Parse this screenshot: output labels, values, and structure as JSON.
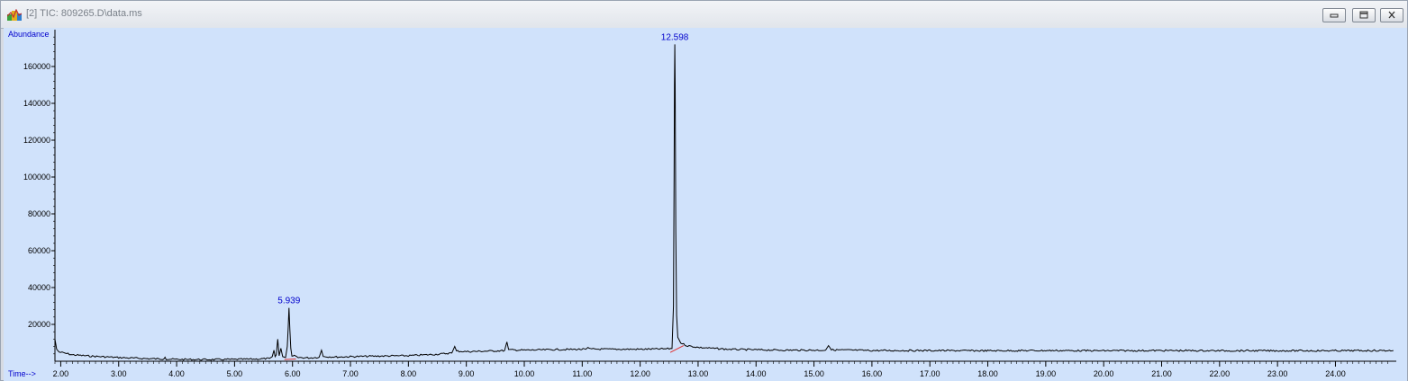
{
  "window": {
    "title": "[2] TIC: 809265.D\\data.ms",
    "icon": "chromatogram-app-icon",
    "controls": [
      "minimize-icon",
      "restore-icon",
      "close-icon"
    ]
  },
  "colors": {
    "plot_bg": "#d0e2fb",
    "trace": "#000000",
    "label": "#0000cc",
    "baseline": "#e03030"
  },
  "chart_data": {
    "type": "line",
    "title": "",
    "xlabel": "Time-->",
    "ylabel": "Abundance",
    "xlim": [
      1.9,
      25.05
    ],
    "ylim": [
      0,
      180000
    ],
    "x_ticks": [
      "2.00",
      "3.00",
      "4.00",
      "5.00",
      "6.00",
      "7.00",
      "8.00",
      "9.00",
      "10.00",
      "11.00",
      "12.00",
      "13.00",
      "14.00",
      "15.00",
      "16.00",
      "17.00",
      "18.00",
      "19.00",
      "20.00",
      "21.00",
      "22.00",
      "23.00",
      "24.00"
    ],
    "y_ticks": [
      "20000",
      "40000",
      "60000",
      "80000",
      "100000",
      "120000",
      "140000",
      "160000"
    ],
    "series": [
      {
        "points": [
          [
            1.9,
            12000
          ],
          [
            1.93,
            6500
          ],
          [
            1.97,
            5000
          ],
          [
            2.05,
            4500
          ],
          [
            2.2,
            3500
          ],
          [
            2.5,
            2800
          ],
          [
            3.0,
            2000
          ],
          [
            3.5,
            1400
          ],
          [
            3.78,
            1200
          ],
          [
            3.8,
            2200
          ],
          [
            3.82,
            1200
          ],
          [
            4.0,
            1000
          ],
          [
            4.5,
            900
          ],
          [
            5.0,
            1000
          ],
          [
            5.4,
            1200
          ],
          [
            5.6,
            1500
          ],
          [
            5.65,
            2500
          ],
          [
            5.68,
            6000
          ],
          [
            5.7,
            2500
          ],
          [
            5.72,
            3500
          ],
          [
            5.745,
            12000
          ],
          [
            5.77,
            3000
          ],
          [
            5.8,
            7000
          ],
          [
            5.83,
            2500
          ],
          [
            5.88,
            2000
          ],
          [
            5.91,
            8000
          ],
          [
            5.925,
            18000
          ],
          [
            5.939,
            29000
          ],
          [
            5.955,
            17000
          ],
          [
            5.97,
            7000
          ],
          [
            5.99,
            2500
          ],
          [
            6.05,
            3000
          ],
          [
            6.1,
            2000
          ],
          [
            6.3,
            1800
          ],
          [
            6.46,
            2200
          ],
          [
            6.5,
            6000
          ],
          [
            6.53,
            2500
          ],
          [
            6.8,
            2300
          ],
          [
            7.0,
            2500
          ],
          [
            7.5,
            2800
          ],
          [
            8.0,
            3000
          ],
          [
            8.5,
            3800
          ],
          [
            8.75,
            4500
          ],
          [
            8.8,
            8000
          ],
          [
            8.83,
            5500
          ],
          [
            9.0,
            5200
          ],
          [
            9.5,
            5600
          ],
          [
            9.66,
            5800
          ],
          [
            9.7,
            10500
          ],
          [
            9.73,
            6200
          ],
          [
            10.0,
            6000
          ],
          [
            10.5,
            6300
          ],
          [
            11.06,
            6500
          ],
          [
            11.1,
            7500
          ],
          [
            11.14,
            6600
          ],
          [
            11.5,
            6500
          ],
          [
            12.0,
            6500
          ],
          [
            12.4,
            6700
          ],
          [
            12.55,
            6900
          ],
          [
            12.575,
            30000
          ],
          [
            12.585,
            100000
          ],
          [
            12.592,
            150000
          ],
          [
            12.598,
            172000
          ],
          [
            12.605,
            150000
          ],
          [
            12.615,
            70000
          ],
          [
            12.63,
            25000
          ],
          [
            12.65,
            13000
          ],
          [
            12.7,
            10000
          ],
          [
            12.8,
            8500
          ],
          [
            13.0,
            7500
          ],
          [
            13.5,
            6500
          ],
          [
            14.0,
            6200
          ],
          [
            14.5,
            6000
          ],
          [
            15.2,
            6000
          ],
          [
            15.25,
            8500
          ],
          [
            15.3,
            6200
          ],
          [
            16.0,
            5800
          ],
          [
            17.0,
            5800
          ],
          [
            18.0,
            5700
          ],
          [
            19.0,
            5800
          ],
          [
            20.0,
            5700
          ],
          [
            21.0,
            5800
          ],
          [
            22.0,
            5700
          ],
          [
            23.0,
            5700
          ],
          [
            24.0,
            5700
          ],
          [
            25.0,
            5800
          ]
        ]
      }
    ],
    "baselines": [
      {
        "x": [
          5.86,
          6.06
        ],
        "y": [
          900,
          1200
        ]
      },
      {
        "x": [
          12.52,
          12.75
        ],
        "y": [
          4800,
          8500
        ]
      }
    ],
    "annotations": [
      {
        "text": "12.598",
        "x": 12.598,
        "y": 172000
      },
      {
        "text": "5.939",
        "x": 5.939,
        "y": 29000
      }
    ],
    "grid": false,
    "legend": "none"
  }
}
